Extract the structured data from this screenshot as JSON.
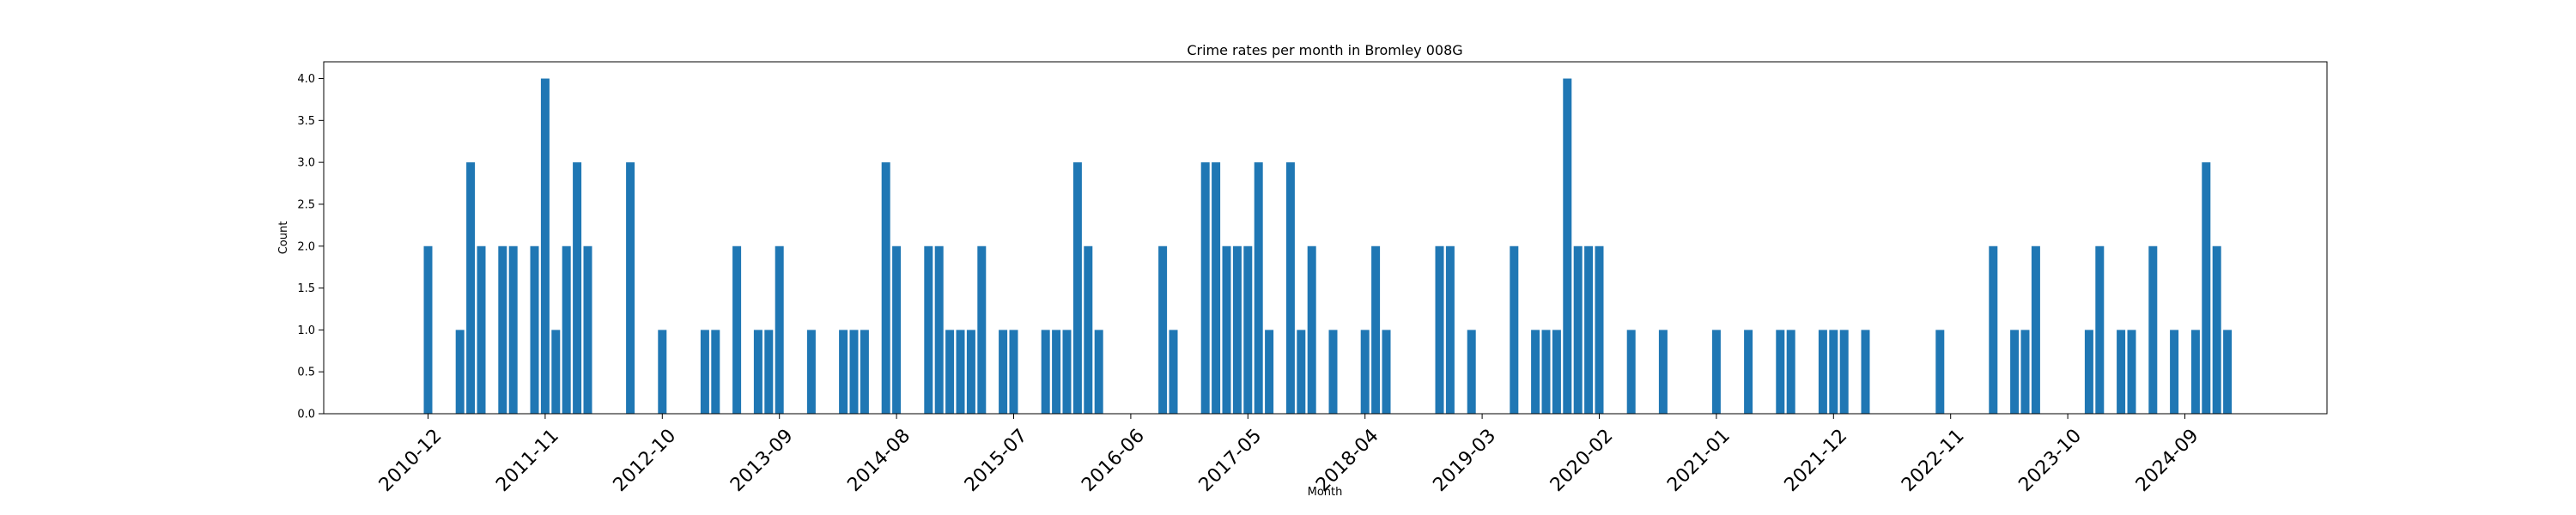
{
  "chart_data": {
    "type": "bar",
    "title": "Crime rates per month in Bromley 008G",
    "xlabel": "Month",
    "ylabel": "Count",
    "ylim": [
      0,
      4.2
    ],
    "grid": false,
    "bar_color": "#1f77b4",
    "yticks": [
      0.0,
      0.5,
      1.0,
      1.5,
      2.0,
      2.5,
      3.0,
      3.5,
      4.0
    ],
    "ytick_labels": [
      "0.0",
      "0.5",
      "1.0",
      "1.5",
      "2.0",
      "2.5",
      "3.0",
      "3.5",
      "4.0"
    ],
    "xtick_labels": [
      "2010-12",
      "2011-11",
      "2012-10",
      "2013-09",
      "2014-08",
      "2015-07",
      "2016-06",
      "2017-05",
      "2018-04",
      "2019-03",
      "2020-02",
      "2021-01",
      "2021-12",
      "2022-11",
      "2023-10",
      "2024-09"
    ],
    "start_month": "2010-12",
    "categories": [
      "2010-12",
      "2011-03",
      "2011-04",
      "2011-05",
      "2011-07",
      "2011-08",
      "2011-10",
      "2011-11",
      "2011-12",
      "2012-01",
      "2012-02",
      "2012-03",
      "2012-07",
      "2012-10",
      "2013-02",
      "2013-03",
      "2013-05",
      "2013-07",
      "2013-08",
      "2013-09",
      "2013-12",
      "2014-03",
      "2014-04",
      "2014-05",
      "2014-07",
      "2014-08",
      "2014-11",
      "2014-12",
      "2015-01",
      "2015-02",
      "2015-03",
      "2015-04",
      "2015-06",
      "2015-07",
      "2015-10",
      "2015-11",
      "2015-12",
      "2016-01",
      "2016-02",
      "2016-03",
      "2016-09",
      "2016-10",
      "2017-01",
      "2017-02",
      "2017-03",
      "2017-04",
      "2017-05",
      "2017-06",
      "2017-07",
      "2017-09",
      "2017-10",
      "2017-11",
      "2018-01",
      "2018-04",
      "2018-05",
      "2018-06",
      "2018-11",
      "2018-12",
      "2019-02",
      "2019-06",
      "2019-08",
      "2019-09",
      "2019-10",
      "2019-11",
      "2019-12",
      "2020-01",
      "2020-02",
      "2020-05",
      "2020-08",
      "2021-01",
      "2021-04",
      "2021-07",
      "2021-08",
      "2021-11",
      "2021-12",
      "2022-01",
      "2022-03",
      "2022-10",
      "2023-03",
      "2023-05",
      "2023-06",
      "2023-07",
      "2023-12",
      "2024-01",
      "2024-03",
      "2024-04",
      "2024-06",
      "2024-08",
      "2024-10",
      "2024-11",
      "2024-12",
      "2025-01"
    ],
    "values": [
      2,
      1,
      3,
      2,
      2,
      2,
      2,
      4,
      1,
      2,
      3,
      2,
      3,
      1,
      1,
      1,
      2,
      1,
      1,
      2,
      1,
      1,
      1,
      1,
      3,
      2,
      2,
      2,
      1,
      1,
      1,
      2,
      1,
      1,
      1,
      1,
      1,
      3,
      2,
      1,
      2,
      1,
      3,
      3,
      2,
      2,
      2,
      3,
      1,
      3,
      1,
      2,
      1,
      1,
      2,
      1,
      2,
      2,
      1,
      2,
      1,
      1,
      1,
      4,
      2,
      2,
      2,
      1,
      1,
      1,
      1,
      1,
      1,
      1,
      1,
      1,
      1,
      1,
      2,
      1,
      1,
      2,
      1,
      2,
      1,
      1,
      2,
      1,
      1,
      3,
      2,
      1
    ]
  }
}
